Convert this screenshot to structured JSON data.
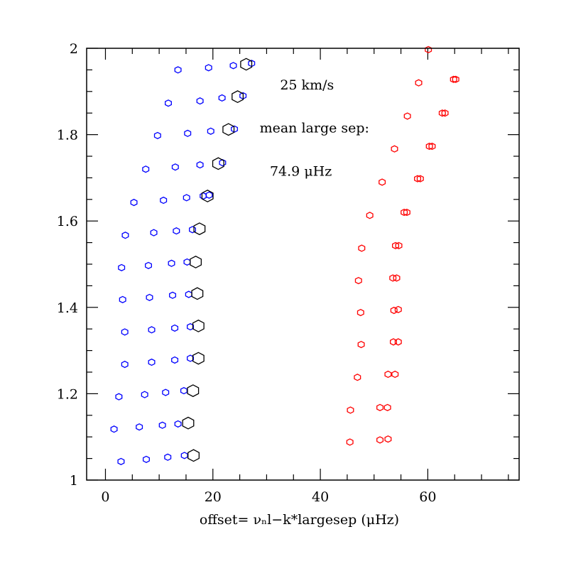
{
  "chart_data": {
    "type": "scatter",
    "title": "",
    "xlabel": "offset= νₙl−k*largesep    (μHz)",
    "ylabel": "",
    "xlim": [
      -3.5,
      77
    ],
    "ylim": [
      1,
      2
    ],
    "x_major_ticks": [
      0,
      20,
      40,
      60
    ],
    "x_minor_step": 5,
    "y_major_ticks": [
      1,
      1.2,
      1.4,
      1.6,
      1.8,
      2
    ],
    "y_minor_step": 0.05,
    "grid": false,
    "annotations": [
      {
        "text": "25 km/s",
        "x": 32.5,
        "y": 1.905
      },
      {
        "text": "mean large sep:",
        "x": 28.7,
        "y": 1.805
      },
      {
        "text": "74.9 μHz",
        "x": 30.6,
        "y": 1.705
      }
    ],
    "series": [
      {
        "color": "#0000ff",
        "marker": "small-hexagon",
        "points": [
          [
            13.5,
            1.95
          ],
          [
            19.2,
            1.955
          ],
          [
            23.8,
            1.96
          ],
          [
            27.2,
            1.965
          ],
          [
            11.7,
            1.873
          ],
          [
            17.6,
            1.878
          ],
          [
            21.7,
            1.885
          ],
          [
            25.6,
            1.89
          ],
          [
            9.7,
            1.798
          ],
          [
            15.3,
            1.803
          ],
          [
            19.6,
            1.808
          ],
          [
            24.0,
            1.813
          ],
          [
            7.5,
            1.72
          ],
          [
            13.0,
            1.725
          ],
          [
            17.6,
            1.73
          ],
          [
            21.8,
            1.735
          ],
          [
            5.3,
            1.643
          ],
          [
            10.8,
            1.648
          ],
          [
            15.1,
            1.654
          ],
          [
            18.2,
            1.658
          ],
          [
            19.3,
            1.66
          ],
          [
            3.7,
            1.567
          ],
          [
            9.0,
            1.573
          ],
          [
            13.2,
            1.577
          ],
          [
            16.2,
            1.58
          ],
          [
            3.0,
            1.492
          ],
          [
            8.0,
            1.497
          ],
          [
            12.3,
            1.502
          ],
          [
            15.2,
            1.505
          ],
          [
            3.2,
            1.418
          ],
          [
            8.2,
            1.423
          ],
          [
            12.5,
            1.428
          ],
          [
            15.5,
            1.43
          ],
          [
            3.6,
            1.343
          ],
          [
            8.6,
            1.348
          ],
          [
            12.9,
            1.352
          ],
          [
            15.8,
            1.355
          ],
          [
            3.6,
            1.268
          ],
          [
            8.6,
            1.273
          ],
          [
            12.9,
            1.278
          ],
          [
            15.8,
            1.282
          ],
          [
            2.5,
            1.193
          ],
          [
            7.3,
            1.198
          ],
          [
            11.2,
            1.203
          ],
          [
            14.6,
            1.207
          ],
          [
            1.6,
            1.118
          ],
          [
            6.3,
            1.123
          ],
          [
            10.6,
            1.127
          ],
          [
            13.5,
            1.13
          ],
          [
            2.9,
            1.043
          ],
          [
            7.6,
            1.048
          ],
          [
            11.6,
            1.053
          ],
          [
            14.7,
            1.057
          ]
        ]
      },
      {
        "color": "#000000",
        "marker": "large-hexagon",
        "points": [
          [
            26.2,
            1.963
          ],
          [
            24.6,
            1.888
          ],
          [
            22.9,
            1.812
          ],
          [
            21.0,
            1.733
          ],
          [
            19.0,
            1.658
          ],
          [
            17.5,
            1.582
          ],
          [
            16.8,
            1.505
          ],
          [
            17.1,
            1.432
          ],
          [
            17.3,
            1.357
          ],
          [
            17.3,
            1.282
          ],
          [
            16.3,
            1.207
          ],
          [
            15.4,
            1.132
          ],
          [
            16.4,
            1.057
          ]
        ]
      },
      {
        "color": "#ff0000",
        "marker": "small-hexagon",
        "points": [
          [
            60.1,
            1.997
          ],
          [
            64.8,
            1.928
          ],
          [
            65.2,
            1.928
          ],
          [
            58.3,
            1.92
          ],
          [
            62.7,
            1.85
          ],
          [
            63.2,
            1.85
          ],
          [
            56.2,
            1.843
          ],
          [
            60.3,
            1.773
          ],
          [
            60.8,
            1.773
          ],
          [
            53.8,
            1.767
          ],
          [
            58.1,
            1.698
          ],
          [
            58.6,
            1.698
          ],
          [
            51.5,
            1.69
          ],
          [
            55.6,
            1.62
          ],
          [
            56.1,
            1.62
          ],
          [
            49.2,
            1.613
          ],
          [
            54.0,
            1.543
          ],
          [
            54.6,
            1.543
          ],
          [
            47.7,
            1.537
          ],
          [
            53.5,
            1.468
          ],
          [
            54.2,
            1.468
          ],
          [
            47.1,
            1.462
          ],
          [
            53.7,
            1.393
          ],
          [
            54.5,
            1.395
          ],
          [
            47.5,
            1.388
          ],
          [
            53.6,
            1.32
          ],
          [
            54.5,
            1.32
          ],
          [
            47.6,
            1.314
          ],
          [
            52.6,
            1.245
          ],
          [
            53.9,
            1.245
          ],
          [
            46.9,
            1.238
          ],
          [
            51.1,
            1.168
          ],
          [
            52.5,
            1.168
          ],
          [
            45.6,
            1.162
          ],
          [
            51.1,
            1.093
          ],
          [
            52.6,
            1.095
          ],
          [
            45.5,
            1.088
          ]
        ]
      }
    ]
  }
}
